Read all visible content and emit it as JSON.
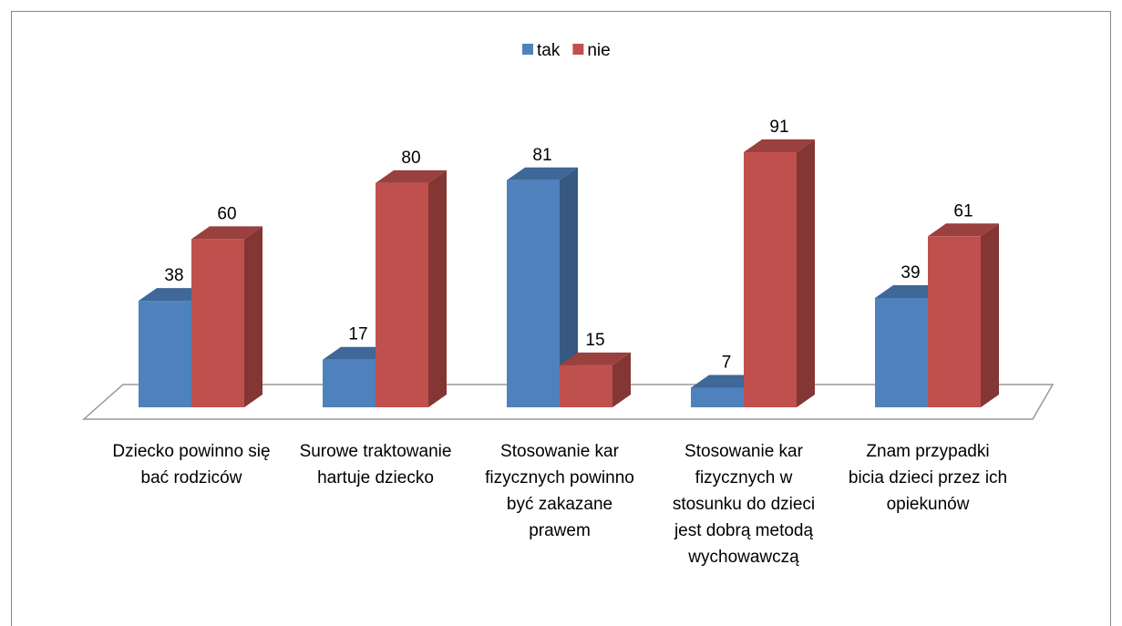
{
  "chart_data": {
    "type": "bar",
    "categories": [
      "Dziecko powinno się bać rodziców",
      "Surowe traktowanie hartuje dziecko",
      "Stosowanie kar fizycznych powinno być zakazane prawem",
      "Stosowanie kar fizycznych w stosunku do dzieci jest dobrą metodą wychowawczą",
      "Znam przypadki bicia dzieci przez ich opiekunów"
    ],
    "series": [
      {
        "name": "tak",
        "color": "#4f81bd",
        "values": [
          38,
          17,
          81,
          7,
          39
        ]
      },
      {
        "name": "nie",
        "color": "#c0504d",
        "values": [
          60,
          80,
          15,
          91,
          61
        ]
      }
    ],
    "legend": "top"
  }
}
